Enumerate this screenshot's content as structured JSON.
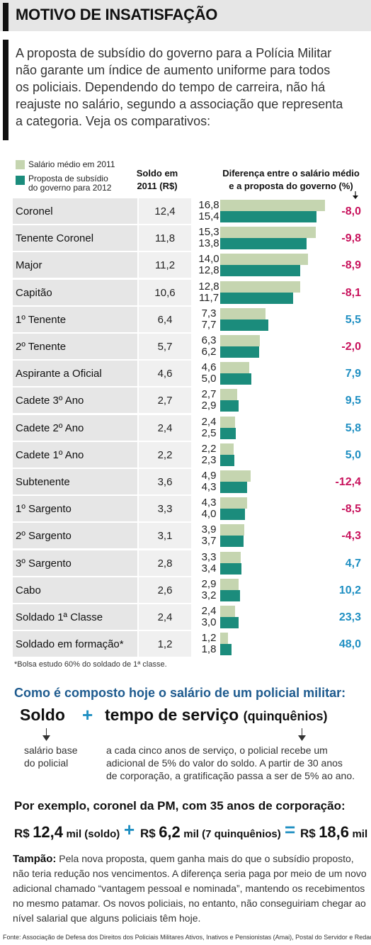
{
  "header": {
    "title": "MOTIVO DE INSATISFAÇÃO"
  },
  "intro": {
    "lines": [
      "A proposta de subsídio do governo para a Polícia Militar",
      "não garante um índice de aumento uniforme para todos",
      "os policiais. Dependendo do tempo de carreira, não há",
      "reajuste no salário, segundo a associação que representa",
      "a categoria. Veja os comparativos:"
    ]
  },
  "legend": {
    "s1_line1": "Salário médio em 2011",
    "s2_line1": "Proposta de subsídio",
    "s2_line2": "do governo para 2012"
  },
  "columns": {
    "soldo_line1": "Soldo em",
    "soldo_line2": "2011 (R$)",
    "diff_line1": "Diferença entre o salário médio",
    "diff_line2": "e a proposta do governo (%)"
  },
  "colors": {
    "series1": "#c5d5b0",
    "series2": "#1b8c7c",
    "negative": "#c8125c",
    "positive": "#1f8fc2"
  },
  "chart_data": {
    "type": "bar",
    "categories": [
      "Coronel",
      "Tenente Coronel",
      "Major",
      "Capitão",
      "1º Tenente",
      "2º Tenente",
      "Aspirante a Oficial",
      "Cadete 3º Ano",
      "Cadete 2º Ano",
      "Cadete 1º Ano",
      "Subtenente",
      "1º Sargento",
      "2º Sargento",
      "3º Sargento",
      "Cabo",
      "Soldado 1ª Classe",
      "Soldado em formação*"
    ],
    "soldo": [
      "12,4",
      "11,8",
      "11,2",
      "10,6",
      "6,4",
      "5,7",
      "4,6",
      "2,7",
      "2,4",
      "2,2",
      "3,6",
      "3,3",
      "3,1",
      "2,8",
      "2,6",
      "2,4",
      "1,2"
    ],
    "series": [
      {
        "name": "Salário médio em 2011",
        "values": [
          16.8,
          15.3,
          14.0,
          12.8,
          7.3,
          6.3,
          4.6,
          2.7,
          2.4,
          2.2,
          4.9,
          4.3,
          3.9,
          3.3,
          2.9,
          2.4,
          1.2
        ],
        "labels": [
          "16,8",
          "15,3",
          "14,0",
          "12,8",
          "7,3",
          "6,3",
          "4,6",
          "2,7",
          "2,4",
          "2,2",
          "4,9",
          "4,3",
          "3,9",
          "3,3",
          "2,9",
          "2,4",
          "1,2"
        ]
      },
      {
        "name": "Proposta de subsídio do governo para 2012",
        "values": [
          15.4,
          13.8,
          12.8,
          11.7,
          7.7,
          6.2,
          5.0,
          2.9,
          2.5,
          2.3,
          4.3,
          4.0,
          3.7,
          3.4,
          3.2,
          3.0,
          1.8
        ],
        "labels": [
          "15,4",
          "13,8",
          "12,8",
          "11,7",
          "7,7",
          "6,2",
          "5,0",
          "2,9",
          "2,5",
          "2,3",
          "4,3",
          "4,0",
          "3,7",
          "3,4",
          "3,2",
          "3,0",
          "1,8"
        ]
      }
    ],
    "difference": [
      "-8,0",
      "-9,8",
      "-8,9",
      "-8,1",
      "5,5",
      "-2,0",
      "7,9",
      "9,5",
      "5,8",
      "5,0",
      "-12,4",
      "-8,5",
      "-4,3",
      "4,7",
      "10,2",
      "23,3",
      "48,0"
    ],
    "difference_values": [
      -8.0,
      -9.8,
      -8.9,
      -8.1,
      5.5,
      -2.0,
      7.9,
      9.5,
      5.8,
      5.0,
      -12.4,
      -8.5,
      -4.3,
      4.7,
      10.2,
      23.3,
      48.0
    ],
    "xlim": [
      0,
      17
    ]
  },
  "note": "*Bolsa estudo 60% do soldado de 1ª classe.",
  "composition": {
    "title": "Como é composto hoje o salário de um policial militar:",
    "soldo": "Soldo",
    "plus": "+",
    "tempo": "tempo de serviço",
    "quinquenios": "(quinquênios)",
    "soldo_desc1": "salário base",
    "soldo_desc2": "do policial",
    "tempo_desc1": "a cada cinco anos de serviço, o policial recebe um",
    "tempo_desc2": "adicional de 5% do valor do soldo. A partir de 30 anos",
    "tempo_desc3": "de corporação, a gratificação passa a ser de 5% ao ano."
  },
  "example": {
    "title": "Por exemplo, coronel da PM, com 35 anos de corporação:",
    "cur1": "R$",
    "val1": "12,4",
    "unit1": "mil (soldo)",
    "plus": "+",
    "cur2": "R$",
    "val2": "6,2",
    "unit2": "mil (7 quinquênios)",
    "eq": "=",
    "cur3": "R$",
    "val3": "18,6",
    "unit3": "mil"
  },
  "tampao": {
    "label": "Tampão:",
    "text": " Pela nova proposta, quem ganha mais do que o subsídio proposto, não teria redução nos vencimentos. A diferença seria paga por meio de um novo adicional chamado “vantagem pessoal e nominada”, mantendo os recebimentos no mesmo patamar. Os novos policiais, no entanto, não conseguiriam chegar ao nível salarial que alguns policiais têm hoje."
  },
  "source": "Fonte: Associação de Defesa dos Direitos dos Policiais Militares Ativos, Inativos e Pensionistas (Amai), Postal do Servidor e Redação."
}
